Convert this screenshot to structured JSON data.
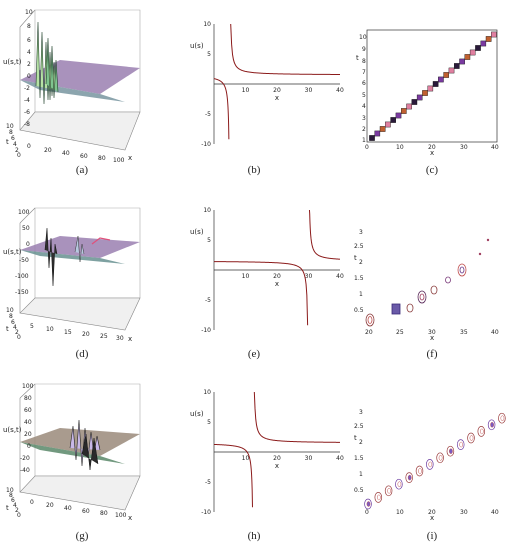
{
  "figure": {
    "rows": [
      {
        "labels": [
          "(a)",
          "(b)",
          "(c)"
        ],
        "surface": {
          "zlabel": "u(s,t)",
          "xlabel": "x",
          "tlabel": "t",
          "zticks": [
            "10",
            "8",
            "6",
            "4",
            "2",
            "0",
            "-2",
            "-4",
            "-6",
            "-8"
          ],
          "tticks": [
            "10",
            "8",
            "6",
            "4",
            "2",
            "0"
          ],
          "xticks": [
            "0",
            "20",
            "40",
            "60",
            "80",
            "100"
          ]
        },
        "curve": {
          "ylabel": "u(s)",
          "xlabel": "x",
          "yticks": [
            "10",
            "5",
            "-5",
            "-10"
          ],
          "xticks": [
            "10",
            "20",
            "30",
            "40"
          ]
        },
        "contour": {
          "xlabel": "x",
          "ylabel": "t",
          "yticks": [
            "10",
            "9",
            "8",
            "7",
            "6",
            "5",
            "4",
            "3",
            "2",
            "1"
          ],
          "xticks": [
            "0",
            "10",
            "20",
            "30",
            "40"
          ]
        }
      },
      {
        "labels": [
          "(d)",
          "(e)",
          "(f)"
        ],
        "surface": {
          "zlabel": "u(s,t)",
          "xlabel": "x",
          "tlabel": "t",
          "zticks": [
            "100",
            "50",
            "0",
            "-50",
            "-100",
            "-150"
          ],
          "tticks": [
            "10",
            "8",
            "6",
            "4",
            "2",
            "0"
          ],
          "xticks": [
            "5",
            "10",
            "15",
            "20",
            "25",
            "30"
          ]
        },
        "curve": {
          "ylabel": "u(s)",
          "xlabel": "x",
          "yticks": [
            "10",
            "5",
            "-5",
            "-10"
          ],
          "xticks": [
            "10",
            "20",
            "30",
            "40"
          ]
        },
        "contour": {
          "xlabel": "x",
          "ylabel": "t",
          "yticks": [
            "3",
            "2.5",
            "2",
            "1.5",
            "1",
            "0.5"
          ],
          "xticks": [
            "20",
            "25",
            "30",
            "35",
            "40"
          ]
        }
      },
      {
        "labels": [
          "(g)",
          "(h)",
          "(i)"
        ],
        "surface": {
          "zlabel": "u(s,t)",
          "xlabel": "x",
          "tlabel": "t",
          "zticks": [
            "100",
            "80",
            "60",
            "40",
            "20",
            "0",
            "-20",
            "-40"
          ],
          "tticks": [
            "10",
            "8",
            "6",
            "4",
            "2",
            "0"
          ],
          "xticks": [
            "0",
            "20",
            "40",
            "60",
            "80",
            "100"
          ]
        },
        "curve": {
          "ylabel": "u(s)",
          "xlabel": "x",
          "yticks": [
            "10",
            "5",
            "-5",
            "-10"
          ],
          "xticks": [
            "10",
            "20",
            "30",
            "40"
          ]
        },
        "contour": {
          "xlabel": "x",
          "ylabel": "t",
          "yticks": [
            "3",
            "2.5",
            "2",
            "1.5",
            "1",
            "0.5"
          ],
          "xticks": [
            "0",
            "10",
            "20",
            "30",
            "40"
          ]
        }
      }
    ]
  },
  "chart_data": [
    {
      "type": "line",
      "panel": "(b)",
      "xlabel": "x",
      "ylabel": "u(s)",
      "xlim": [
        0,
        40
      ],
      "ylim": [
        -10,
        10
      ],
      "pole_x": 5,
      "asymptote_y": 1.5
    },
    {
      "type": "line",
      "panel": "(e)",
      "xlabel": "x",
      "ylabel": "u(s)",
      "xlim": [
        0,
        40
      ],
      "ylim": [
        -10,
        10
      ],
      "pole_x": 30,
      "asymptote_y": 1.5
    },
    {
      "type": "line",
      "panel": "(h)",
      "xlabel": "x",
      "ylabel": "u(s)",
      "xlim": [
        0,
        40
      ],
      "ylim": [
        -10,
        10
      ],
      "pole_x": 12.5,
      "asymptote_y": 1.5
    }
  ]
}
